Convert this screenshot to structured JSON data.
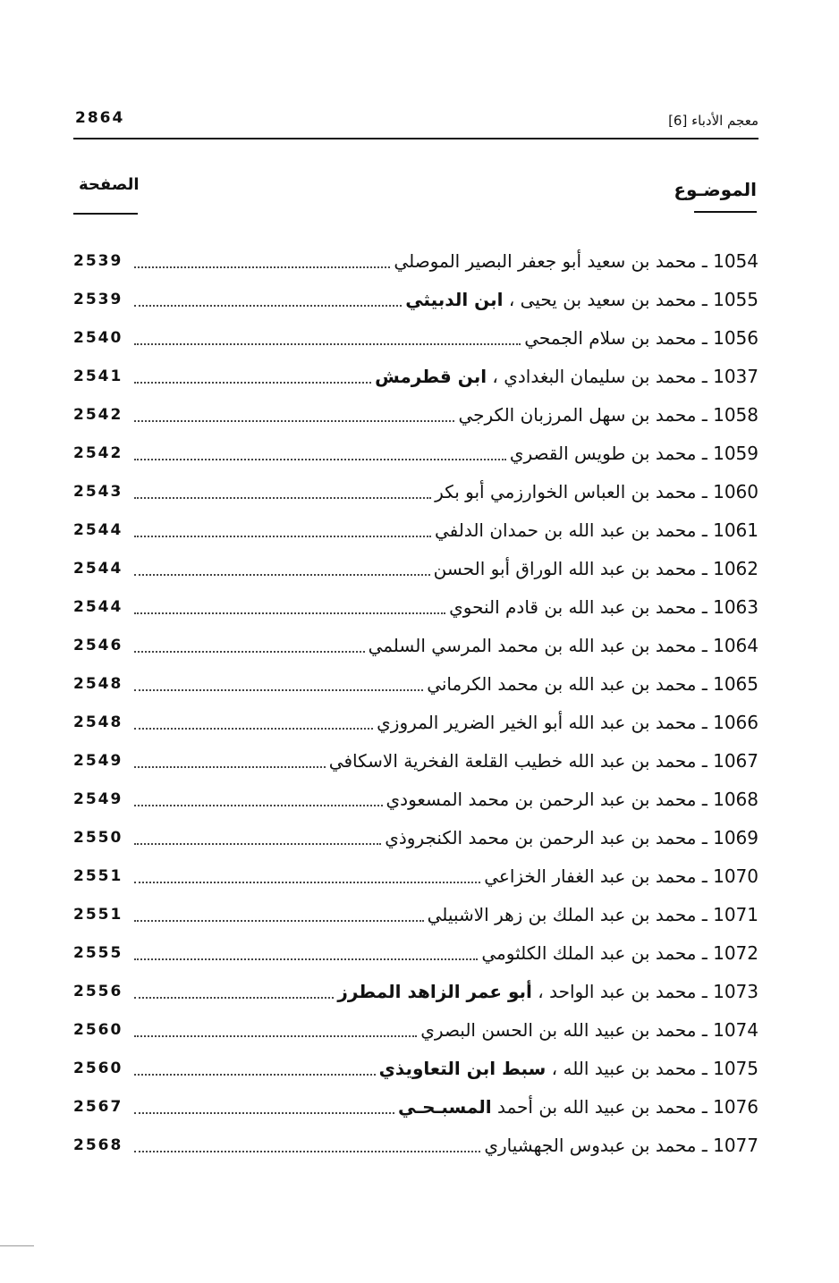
{
  "header": {
    "book_title": "معجم الأدباء [6]",
    "page_number": "2864"
  },
  "columns": {
    "topic": "الموضـوع",
    "page": "الصفحة"
  },
  "entries": [
    {
      "num": "1054",
      "title": "محمد بن سعيد أبو جعفر البصير الموصلي",
      "bold": "",
      "page": "2539"
    },
    {
      "num": "1055",
      "title": "محمد بن سعيد بن يحيى ، ",
      "bold": "ابن الدبيثي",
      "page": "2539"
    },
    {
      "num": "1056",
      "title": "محمد بن سلام الجمحي",
      "bold": "",
      "page": "2540"
    },
    {
      "num": "1037",
      "title": "محمد بن سليمان البغدادي ، ",
      "bold": "ابن قطرمش",
      "page": "2541"
    },
    {
      "num": "1058",
      "title": "محمد بن سهل المرزبان الكرجي",
      "bold": "",
      "page": "2542"
    },
    {
      "num": "1059",
      "title": "محمد بن طويس القصري",
      "bold": "",
      "page": "2542"
    },
    {
      "num": "1060",
      "title": "محمد بن العباس الخوارزمي أبو بكر",
      "bold": "",
      "page": "2543"
    },
    {
      "num": "1061",
      "title": "محمد بن عبد الله بن حمدان الدلفي",
      "bold": "",
      "page": "2544"
    },
    {
      "num": "1062",
      "title": "محمد بن عبد الله الوراق أبو الحسن",
      "bold": "",
      "page": "2544"
    },
    {
      "num": "1063",
      "title": "محمد بن عبد الله بن قادم النحوي",
      "bold": "",
      "page": "2544"
    },
    {
      "num": "1064",
      "title": "محمد بن عبد الله بن محمد المرسي السلمي",
      "bold": "",
      "page": "2546"
    },
    {
      "num": "1065",
      "title": "محمد بن عبد الله بن محمد الكرماني",
      "bold": "",
      "page": "2548"
    },
    {
      "num": "1066",
      "title": "محمد بن عبد الله أبو الخير الضرير المروزي",
      "bold": "",
      "page": "2548"
    },
    {
      "num": "1067",
      "title": "محمد بن عبد الله خطيب القلعة الفخرية الاسكافي",
      "bold": "",
      "page": "2549"
    },
    {
      "num": "1068",
      "title": "محمد بن عبد الرحمن بن محمد المسعودي",
      "bold": "",
      "page": "2549"
    },
    {
      "num": "1069",
      "title": "محمد بن عبد الرحمن بن محمد الكنجروذي",
      "bold": "",
      "page": "2550"
    },
    {
      "num": "1070",
      "title": "محمد بن عبد الغفار الخزاعي",
      "bold": "",
      "page": "2551"
    },
    {
      "num": "1071",
      "title": "محمد بن عبد الملك بن زهر الاشبيلي",
      "bold": "",
      "page": "2551"
    },
    {
      "num": "1072",
      "title": "محمد بن عبد الملك الكلثومي",
      "bold": "",
      "page": "2555"
    },
    {
      "num": "1073",
      "title": "محمد بن عبد الواحد ، ",
      "bold": "أبو عمر الزاهد المطرز",
      "page": "2556"
    },
    {
      "num": "1074",
      "title": "محمد بن عبيد الله بن الحسن البصري",
      "bold": "",
      "page": "2560"
    },
    {
      "num": "1075",
      "title": "محمد بن عبيد الله ، ",
      "bold": "سبط ابن التعاويذي",
      "page": "2560"
    },
    {
      "num": "1076",
      "title": "محمد بن عبيد الله بن أحمد ",
      "bold": "المسبـحـي",
      "page": "2567"
    },
    {
      "num": "1077",
      "title": "محمد بن عبدوس الجهشياري",
      "bold": "",
      "page": "2568"
    }
  ]
}
